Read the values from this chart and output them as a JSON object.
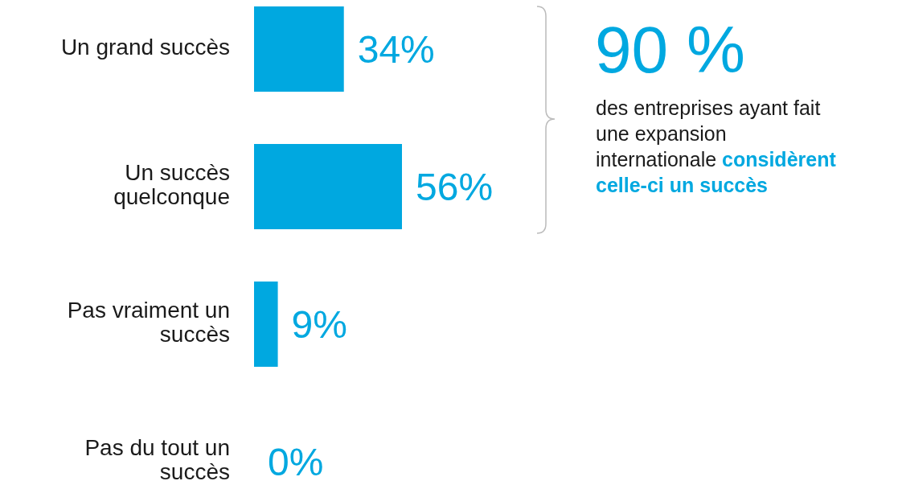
{
  "chart_data": {
    "type": "bar",
    "orientation": "horizontal",
    "categories": [
      "Un grand succès",
      "Un succès quelconque",
      "Pas vraiment un succès",
      "Pas du tout un succès"
    ],
    "values": [
      34,
      56,
      9,
      0
    ],
    "value_labels": [
      "34%",
      "56%",
      "9%",
      "0%"
    ],
    "color": "#00a8e0",
    "annotations": [
      "90 %",
      "des entreprises ayant fait une expansion internationale",
      "considèrent celle-ci un succès"
    ]
  }
}
